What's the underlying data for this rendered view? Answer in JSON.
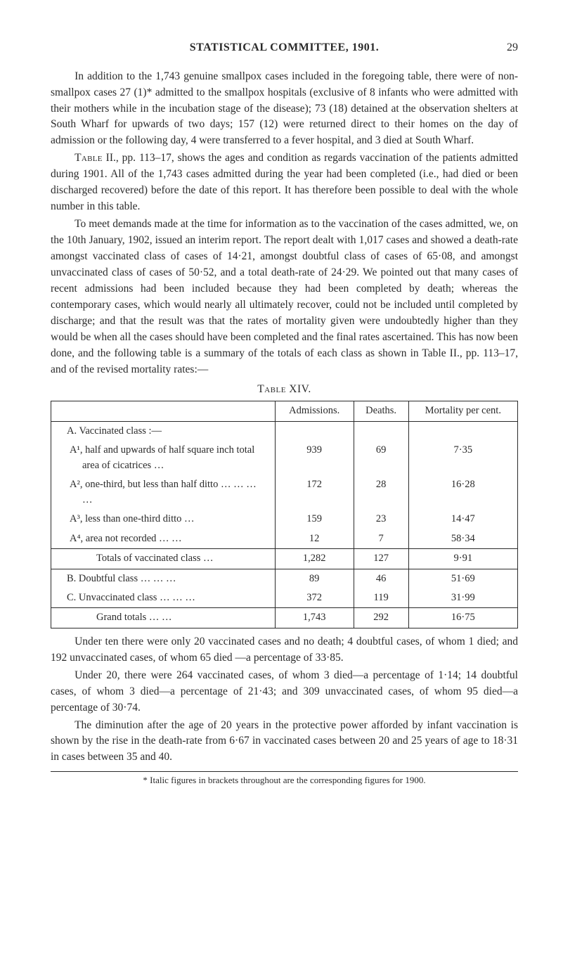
{
  "header": {
    "title": "STATISTICAL COMMITTEE, 1901.",
    "page": "29"
  },
  "paragraphs": {
    "p1": "In addition to the 1,743 genuine smallpox cases included in the foregoing table, there were of non-smallpox cases 27 (1)* admitted to the smallpox hospitals (exclusive of 8 infants who were admitted with their mothers while in the incubation stage of the disease); 73 (18) detained at the observation shelters at South Wharf for upwards of two days; 157 (12) were returned direct to their homes on the day of admission or the following day, 4 were transferred to a fever hospital, and 3 died at South Wharf.",
    "p2_prefix": "Table",
    "p2": " II., pp. 113–17, shows the ages and condition as regards vaccination of the patients admitted during 1901. All of the 1,743 cases admitted during the year had been completed (i.e., had died or been discharged recovered) before the date of this report. It has therefore been possible to deal with the whole number in this table.",
    "p3": "To meet demands made at the time for information as to the vaccination of the cases admitted, we, on the 10th January, 1902, issued an interim report. The report dealt with 1,017 cases and showed a death-rate amongst vaccinated class of cases of 14·21, amongst doubtful class of cases of 65·08, and amongst unvaccinated class of cases of 50·52, and a total death-rate of 24·29. We pointed out that many cases of recent admissions had been included because they had been completed by death; whereas the contemporary cases, which would nearly all ultimately recover, could not be included until completed by discharge; and that the result was that the rates of mortality given were undoubtedly higher than they would be when all the cases should have been completed and the final rates ascertained. This has now been done, and the following table is a summary of the totals of each class as shown in Table II., pp. 113–17, and of the revised mortality rates:—",
    "p4": "Under ten there were only 20 vaccinated cases and no death; 4 doubtful cases, of whom 1 died; and 192 unvaccinated cases, of whom 65 died —a percentage of 33·85.",
    "p5": "Under 20, there were 264 vaccinated cases, of whom 3 died—a percentage of 1·14; 14 doubtful cases, of whom 3 died—a percentage of 21·43; and 309 unvaccinated cases, of whom 95 died—a percentage of 30·74.",
    "p6": "The diminution after the age of 20 years in the protective power afforded by infant vaccination is shown by the rise in the death-rate from 6·67 in vaccinated cases between 20 and 25 years of age to 18·31 in cases between 35 and 40."
  },
  "table": {
    "caption": "Table XIV.",
    "columns": [
      "",
      "Admissions.",
      "Deaths.",
      "Mortality per cent."
    ],
    "sectionA": "A. Vaccinated class :—",
    "rows": [
      {
        "label": "A¹, half and upwards of half square inch total area of cicatrices …",
        "admissions": "939",
        "deaths": "69",
        "mortality": "7·35"
      },
      {
        "label": "A², one-third, but less than half ditto        …     …     …     …",
        "admissions": "172",
        "deaths": "28",
        "mortality": "16·28"
      },
      {
        "label": "A³, less than one-third ditto    …",
        "admissions": "159",
        "deaths": "23",
        "mortality": "14·47"
      },
      {
        "label": "A⁴, area not recorded      …     …",
        "admissions": "12",
        "deaths": "7",
        "mortality": "58·34"
      }
    ],
    "totalsA": {
      "label": "Totals of vaccinated class …",
      "admissions": "1,282",
      "deaths": "127",
      "mortality": "9·91"
    },
    "rowB": {
      "label": "B. Doubtful class       …     …     …",
      "admissions": "89",
      "deaths": "46",
      "mortality": "51·69"
    },
    "rowC": {
      "label": "C. Unvaccinated class …      …     …",
      "admissions": "372",
      "deaths": "119",
      "mortality": "31·99"
    },
    "grand": {
      "label": "Grand totals          …     …",
      "admissions": "1,743",
      "deaths": "292",
      "mortality": "16·75"
    }
  },
  "footnote": "* Italic figures in brackets throughout are the corresponding figures for 1900."
}
